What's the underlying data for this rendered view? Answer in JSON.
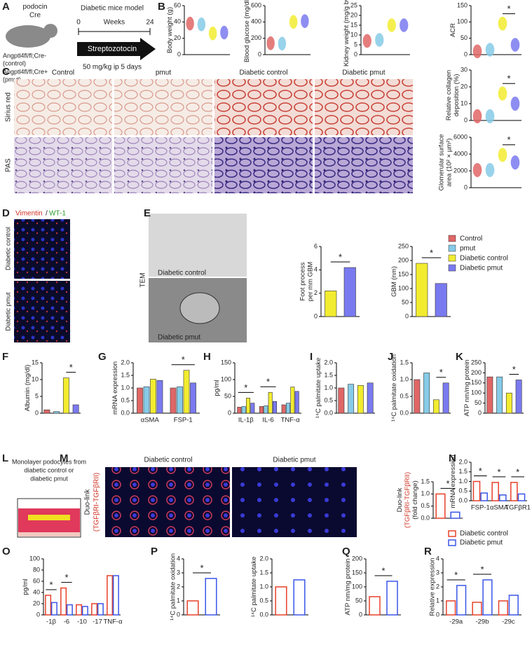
{
  "panel_labels": [
    "A",
    "B",
    "C",
    "D",
    "E",
    "F",
    "G",
    "H",
    "I",
    "J",
    "K",
    "L",
    "M",
    "N",
    "O",
    "P",
    "Q",
    "R"
  ],
  "schematic_a": {
    "mouse_line1": "podocin",
    "mouse_line2": "Cre",
    "genotype1": "Angptl4fl/fl;Cre-",
    "genotype1b": "(control)",
    "genotype2": "Angptl4fl/fl;Cre+",
    "genotype2b": "(pmut)",
    "model": "Diabetic mice model",
    "start": "0",
    "unit": "Weeks",
    "end": "24",
    "drug": "Streptozotocin",
    "dose": "50 mg/kg ip 5 days"
  },
  "micrographs_c": {
    "columns": [
      "Control",
      "pmut",
      "Diabetic control",
      "Diabetic pmut"
    ],
    "rows": [
      "Sirius red",
      "PAS"
    ]
  },
  "micrographs_d": {
    "stain_red": "Vimentin",
    "stain_sep": "/",
    "stain_green": "WT-1",
    "rows": [
      "Diabetic control",
      "Diabetic pmut"
    ]
  },
  "micrographs_e": {
    "method": "TEM",
    "top": "Diabetic control",
    "bottom": "Diabetic pmut"
  },
  "legend_groups": [
    {
      "name": "Control",
      "color": "#e06666"
    },
    {
      "name": "pmut",
      "color": "#86cbe8"
    },
    {
      "name": "Diabetic control",
      "color": "#f2ec30"
    },
    {
      "name": "Diabetic pmut",
      "color": "#7a7af0"
    }
  ],
  "schematic_l": {
    "text": [
      "Monolayer podocytes from",
      "diabetic control or",
      "diabetic pmut"
    ]
  },
  "micrographs_m": {
    "columns": [
      "Diabetic control",
      "Diabetic pmut"
    ],
    "row": [
      "Duo-link",
      "(TGFβRI-TGFβRII)"
    ]
  },
  "legend_pair": [
    {
      "name": "Diabetic control",
      "color": "#e8402a"
    },
    {
      "name": "Diabetic pmut",
      "color": "#3a56e8"
    }
  ],
  "chart_data": [
    {
      "type": "violin",
      "ylabel": [
        "Body weight (g)"
      ],
      "values": [
        38,
        37,
        26,
        27
      ],
      "colors": [
        "#e06666",
        "#86cbe8",
        "#f2ec30",
        "#7a7af0"
      ],
      "ylim": [
        0,
        60
      ],
      "yticks": [
        0,
        20,
        40,
        60
      ]
    },
    {
      "type": "violin",
      "ylabel": [
        "Blood glucose (mg/dl)"
      ],
      "values": [
        140,
        135,
        400,
        410
      ],
      "colors": [
        "#e06666",
        "#86cbe8",
        "#f2ec30",
        "#7a7af0"
      ],
      "ylim": [
        0,
        600
      ],
      "yticks": [
        0,
        200,
        400,
        600
      ]
    },
    {
      "type": "violin",
      "ylabel": [
        "Kidney weight (mg/g bw)"
      ],
      "values": [
        7,
        7.5,
        15,
        15
      ],
      "colors": [
        "#e06666",
        "#86cbe8",
        "#f2ec30",
        "#7a7af0"
      ],
      "ylim": [
        0,
        25
      ],
      "yticks": [
        0,
        5,
        10,
        15,
        20,
        25
      ]
    },
    {
      "type": "violin",
      "ylabel": [
        "ACR"
      ],
      "values": [
        10,
        15,
        95,
        30
      ],
      "colors": [
        "#e06666",
        "#86cbe8",
        "#f2ec30",
        "#7a7af0"
      ],
      "ylim": [
        0,
        150
      ],
      "yticks": [
        0,
        50,
        100,
        150
      ],
      "annotations": [
        {
          "text": "*",
          "between": [
            2,
            3
          ]
        }
      ]
    },
    {
      "type": "violin",
      "ylabel": [
        "Relative collagen",
        "deposition (%)"
      ],
      "values": [
        2.5,
        2.5,
        16,
        10
      ],
      "colors": [
        "#e06666",
        "#86cbe8",
        "#f2ec30",
        "#7a7af0"
      ],
      "ylim": [
        0,
        30
      ],
      "yticks": [
        0,
        10,
        20,
        30
      ],
      "annotations": [
        {
          "text": "*",
          "between": [
            2,
            3
          ]
        }
      ]
    },
    {
      "type": "violin",
      "ylabel": [
        "Glomerular surface",
        "area (10² × µm²)"
      ],
      "values": [
        2100,
        2100,
        3900,
        3000
      ],
      "colors": [
        "#e06666",
        "#86cbe8",
        "#f2ec30",
        "#7a7af0"
      ],
      "ylim": [
        0,
        6000
      ],
      "yticks": [
        0,
        2000,
        4000,
        6000
      ],
      "annotations": [
        {
          "text": "*",
          "between": [
            2,
            3
          ]
        }
      ]
    },
    {
      "type": "bar",
      "ylabel": [
        "Foot process",
        "per mm GBM"
      ],
      "values": [
        2.2,
        4.2
      ],
      "colors": [
        "#f2ec30",
        "#7a7af0"
      ],
      "ylim": [
        0,
        6
      ],
      "yticks": [
        0,
        2,
        4,
        6
      ],
      "annotations": [
        {
          "text": "*",
          "between": [
            0,
            1
          ]
        }
      ]
    },
    {
      "type": "bar",
      "ylabel": [
        "GBM (nm)"
      ],
      "values": [
        190,
        118
      ],
      "colors": [
        "#f2ec30",
        "#7a7af0"
      ],
      "ylim": [
        0,
        250
      ],
      "yticks": [
        0,
        50,
        100,
        150,
        200,
        250
      ],
      "annotations": [
        {
          "text": "*",
          "between": [
            0,
            1
          ]
        }
      ]
    },
    {
      "type": "bar",
      "ylabel": [
        "Albumin (mg/dl)"
      ],
      "values": [
        1,
        0.5,
        10.5,
        2.5
      ],
      "colors": [
        "#e06666",
        "#86cbe8",
        "#f2ec30",
        "#7a7af0"
      ],
      "ylim": [
        0,
        15
      ],
      "yticks": [
        0,
        5,
        10,
        15
      ],
      "annotations": [
        {
          "text": "*",
          "between": [
            2,
            3
          ]
        }
      ]
    },
    {
      "type": "bar",
      "ylabel": [
        "mRNA expression"
      ],
      "categories": [
        "αSMA",
        "FSP-1"
      ],
      "series": [
        {
          "color": "#e06666",
          "values": [
            1.0,
            1.0
          ]
        },
        {
          "color": "#86cbe8",
          "values": [
            1.05,
            1.05
          ]
        },
        {
          "color": "#f2ec30",
          "values": [
            1.35,
            1.7
          ]
        },
        {
          "color": "#7a7af0",
          "values": [
            1.3,
            1.2
          ]
        }
      ],
      "ylim": [
        0,
        2
      ],
      "yticks": [
        {
          "value": 0,
          "label": "0.0"
        },
        {
          "value": 0.5,
          "label": "0.5"
        },
        {
          "value": 1,
          "label": "1.0"
        },
        {
          "value": 1.5,
          "label": "1.5"
        },
        {
          "value": 2,
          "label": "2.0"
        }
      ],
      "annotations": [
        {
          "text": "*",
          "category": 1
        }
      ]
    },
    {
      "type": "bar",
      "ylabel": [
        "pg/ml"
      ],
      "categories": [
        "IL-1β",
        "IL-6",
        "TNF-α"
      ],
      "series": [
        {
          "color": "#e06666",
          "values": [
            18,
            20,
            25
          ]
        },
        {
          "color": "#86cbe8",
          "values": [
            20,
            22,
            30
          ]
        },
        {
          "color": "#f2ec30",
          "values": [
            45,
            62,
            78
          ]
        },
        {
          "color": "#7a7af0",
          "values": [
            30,
            35,
            65
          ]
        }
      ],
      "ylim": [
        0,
        150
      ],
      "yticks": [
        0,
        50,
        100,
        150
      ],
      "annotations": [
        {
          "text": "*",
          "category": 0
        },
        {
          "text": "*",
          "category": 1
        }
      ]
    },
    {
      "type": "bar",
      "ylabel": [
        "¹⁴C palmitate uptake"
      ],
      "values": [
        1.0,
        1.15,
        1.1,
        1.2
      ],
      "colors": [
        "#e06666",
        "#86cbe8",
        "#f2ec30",
        "#7a7af0"
      ],
      "ylim": [
        0,
        2
      ],
      "yticks": [
        {
          "value": 0,
          "label": "0.0"
        },
        {
          "value": 0.5,
          "label": "0.5"
        },
        {
          "value": 1,
          "label": "1.0"
        },
        {
          "value": 1.5,
          "label": "1.5"
        },
        {
          "value": 2,
          "label": "2.0"
        }
      ]
    },
    {
      "type": "bar",
      "ylabel": [
        "¹⁴C palmitate oxidation"
      ],
      "values": [
        1.0,
        1.2,
        0.4,
        0.9
      ],
      "colors": [
        "#e06666",
        "#86cbe8",
        "#f2ec30",
        "#7a7af0"
      ],
      "ylim": [
        0,
        1.5
      ],
      "yticks": [
        {
          "value": 0,
          "label": "0.0"
        },
        {
          "value": 0.5,
          "label": "0.5"
        },
        {
          "value": 1,
          "label": "1.0"
        },
        {
          "value": 1.5,
          "label": "1.5"
        }
      ],
      "annotations": [
        {
          "text": "*",
          "between": [
            2,
            3
          ]
        }
      ]
    },
    {
      "type": "bar",
      "ylabel": [
        "ATP nm/mg protein"
      ],
      "values": [
        180,
        180,
        100,
        165
      ],
      "colors": [
        "#e06666",
        "#86cbe8",
        "#f2ec30",
        "#7a7af0"
      ],
      "ylim": [
        0,
        250
      ],
      "yticks": [
        0,
        50,
        100,
        150,
        200,
        250
      ],
      "annotations": [
        {
          "text": "*",
          "between": [
            2,
            3
          ]
        }
      ]
    },
    {
      "type": "bar",
      "open": true,
      "ylabel": [
        "Duo-link",
        "(TGFβRI-TGFβRII)",
        "(fold change)"
      ],
      "values": [
        1.0,
        0.25
      ],
      "colors": [
        "#e8402a",
        "#3a56e8"
      ],
      "ylim": [
        0,
        1.5
      ],
      "yticks": [
        {
          "value": 0,
          "label": "0.0"
        },
        {
          "value": 0.5,
          "label": "0.5"
        },
        {
          "value": 1,
          "label": "1.0"
        },
        {
          "value": 1.5,
          "label": "1.5"
        }
      ],
      "annotations": [
        {
          "text": "*",
          "between": [
            0,
            1
          ]
        }
      ]
    },
    {
      "type": "bar",
      "open": true,
      "ylabel": [
        "mRNA expression"
      ],
      "categories": [
        "FSP-1",
        "αSMA",
        "TGFβR1"
      ],
      "series": [
        {
          "color": "#e8402a",
          "values": [
            1.0,
            0.95,
            0.95
          ]
        },
        {
          "color": "#3a56e8",
          "values": [
            0.4,
            0.3,
            0.35
          ]
        }
      ],
      "ylim": [
        0,
        2
      ],
      "yticks": [
        {
          "value": 0,
          "label": "0.0"
        },
        {
          "value": 0.5,
          "label": "0.5"
        },
        {
          "value": 1,
          "label": "1.0"
        },
        {
          "value": 1.5,
          "label": "1.5"
        },
        {
          "value": 2,
          "label": "2.0"
        }
      ],
      "annotations": [
        {
          "text": "*",
          "category": 0
        },
        {
          "text": "*",
          "category": 1
        },
        {
          "text": "*",
          "category": 2
        }
      ]
    },
    {
      "type": "bar",
      "open": true,
      "ylabel": [
        "pg/ml"
      ],
      "categories": [
        "-1β",
        "-6",
        "-10",
        "-17",
        "TNF-α"
      ],
      "series": [
        {
          "color": "#e8402a",
          "values": [
            35,
            48,
            18,
            20,
            70
          ]
        },
        {
          "color": "#3a56e8",
          "values": [
            22,
            18,
            15,
            20,
            70
          ]
        }
      ],
      "ylim": [
        0,
        100
      ],
      "yticks": [
        0,
        20,
        40,
        60,
        80,
        100
      ],
      "annotations": [
        {
          "text": "*",
          "category": 0
        },
        {
          "text": "*",
          "category": 1
        }
      ]
    },
    {
      "type": "bar",
      "open": true,
      "ylabel": [
        "¹⁴C palmitate oxidation"
      ],
      "values": [
        1.0,
        2.6
      ],
      "colors": [
        "#e8402a",
        "#3a56e8"
      ],
      "ylim": [
        0,
        4
      ],
      "yticks": [
        0,
        1,
        2,
        3,
        4
      ],
      "annotations": [
        {
          "text": "*",
          "between": [
            0,
            1
          ]
        }
      ]
    },
    {
      "type": "bar",
      "open": true,
      "ylabel": [
        "¹⁴C palmitate uptake"
      ],
      "values": [
        1.0,
        1.25
      ],
      "colors": [
        "#e8402a",
        "#3a56e8"
      ],
      "ylim": [
        0,
        2
      ],
      "yticks": [
        {
          "value": 0,
          "label": "0.0"
        },
        {
          "value": 0.5,
          "label": "0.5"
        },
        {
          "value": 1,
          "label": "1.0"
        },
        {
          "value": 1.5,
          "label": "1.5"
        },
        {
          "value": 2,
          "label": "2.0"
        }
      ]
    },
    {
      "type": "bar",
      "open": true,
      "ylabel": [
        "ATP nm/mg protein"
      ],
      "values": [
        65,
        120
      ],
      "colors": [
        "#e8402a",
        "#3a56e8"
      ],
      "ylim": [
        0,
        200
      ],
      "yticks": [
        0,
        50,
        100,
        150,
        200
      ],
      "annotations": [
        {
          "text": "*",
          "between": [
            0,
            1
          ]
        }
      ]
    },
    {
      "type": "bar",
      "open": true,
      "ylabel": [
        "Relative expression"
      ],
      "categories": [
        "-29a",
        "-29b",
        "-29c"
      ],
      "series": [
        {
          "color": "#e8402a",
          "values": [
            1.0,
            0.9,
            1.0
          ]
        },
        {
          "color": "#3a56e8",
          "values": [
            2.1,
            2.5,
            1.4
          ]
        }
      ],
      "ylim": [
        0,
        4
      ],
      "yticks": [
        0,
        1,
        2,
        3,
        4
      ],
      "annotations": [
        {
          "text": "*",
          "category": 0
        },
        {
          "text": "*",
          "category": 1
        }
      ]
    }
  ]
}
